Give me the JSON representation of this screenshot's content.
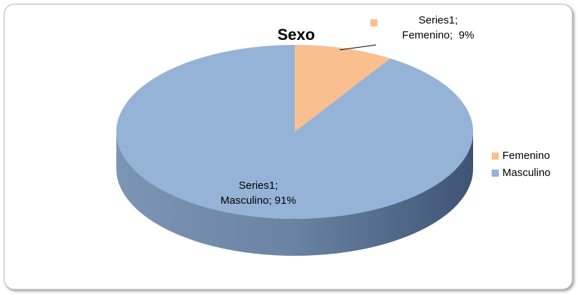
{
  "chart_data": {
    "type": "pie3d",
    "title": "Sexo",
    "series_name": "Series1",
    "categories": [
      "Femenino",
      "Masculino"
    ],
    "values": [
      9,
      91
    ],
    "value_labels": [
      "Series1; Femenino;  9%",
      "Series1; Masculino; 91%"
    ],
    "colors": [
      "#f9bf8f",
      "#95b3d7"
    ],
    "legend": "right"
  }
}
